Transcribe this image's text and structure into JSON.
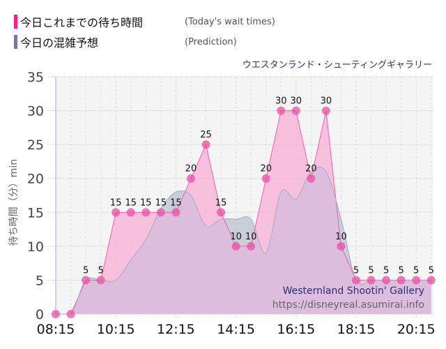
{
  "legend": {
    "actual": {
      "label": "今日これまでの待ち時間",
      "sub": "(Today's wait times)",
      "color": "#f0238f"
    },
    "prediction": {
      "label": "今日の混雑予想",
      "sub": "(Prediction)",
      "color": "#6f7aa6"
    }
  },
  "attraction_title": "ウエスタンランド・シューティングギャラリー",
  "watermark": {
    "name": "Westernland Shootin' Gallery",
    "url": "https://disneyreal.asumirai.info"
  },
  "colors": {
    "actual_fill": "#f7b6d8",
    "actual_line": "#ec5fa9",
    "actual_point": "#ec4fa3",
    "prediction_fill": "#b9c3cf",
    "overlap_fill": "#ddbddd",
    "plot_bg": "#f4f4f4",
    "grid": "#cfcfcf"
  },
  "chart_data": {
    "type": "area",
    "title": "ウエスタンランド・シューティングギャラリー",
    "xlabel": "",
    "ylabel": "待ち時間（分）min",
    "ylim": [
      0,
      35
    ],
    "yticks": [
      0,
      5,
      10,
      15,
      20,
      25,
      30,
      35
    ],
    "xtick_labels": [
      "08:15",
      "10:15",
      "12:15",
      "14:15",
      "16:15",
      "18:15",
      "20:15"
    ],
    "grid": true,
    "legend_position": "top-left",
    "x": [
      "08:15",
      "08:45",
      "09:15",
      "09:45",
      "10:15",
      "10:45",
      "11:15",
      "11:45",
      "12:15",
      "12:45",
      "13:15",
      "13:45",
      "14:15",
      "14:45",
      "15:15",
      "15:45",
      "16:15",
      "16:45",
      "17:15",
      "17:45",
      "18:15",
      "18:45",
      "19:15",
      "19:45",
      "20:15",
      "20:45"
    ],
    "series": [
      {
        "name": "今日これまでの待ち時間 (Today's wait times)",
        "values": [
          0,
          0,
          5,
          5,
          15,
          15,
          15,
          15,
          15,
          20,
          25,
          15,
          10,
          10,
          20,
          30,
          30,
          20,
          30,
          10,
          5,
          5,
          5,
          5,
          5,
          5
        ],
        "data_labels": true
      },
      {
        "name": "今日の混雑予想 (Prediction)",
        "values": [
          0,
          0,
          5,
          5,
          5,
          8,
          11,
          15.5,
          18,
          17.5,
          13,
          14,
          14,
          14,
          9,
          18,
          17,
          21,
          21,
          14,
          5,
          5,
          5,
          5,
          5,
          5
        ]
      }
    ]
  }
}
